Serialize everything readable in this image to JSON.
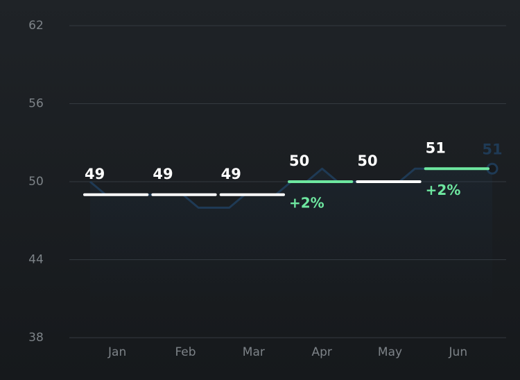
{
  "chart_data": {
    "type": "line",
    "categories": [
      "Jan",
      "Feb",
      "Mar",
      "Apr",
      "May",
      "Jun"
    ],
    "ylim": [
      38,
      62
    ],
    "yticks": [
      38,
      44,
      50,
      56,
      62
    ],
    "grid": true,
    "monthly": {
      "values": [
        49,
        49,
        49,
        50,
        50,
        51
      ],
      "color": "#ffffff",
      "highlight_color": "#6ee7a0",
      "changes": [
        null,
        null,
        null,
        "+2%",
        null,
        "+2%"
      ]
    },
    "trend": {
      "color": "#1f3a55",
      "values": [
        50,
        49,
        49,
        49,
        49,
        49,
        49,
        48,
        48,
        48,
        49,
        49,
        49,
        50,
        50,
        51,
        50,
        50,
        50,
        50,
        50,
        51,
        51,
        51,
        51,
        51,
        51
      ]
    }
  }
}
